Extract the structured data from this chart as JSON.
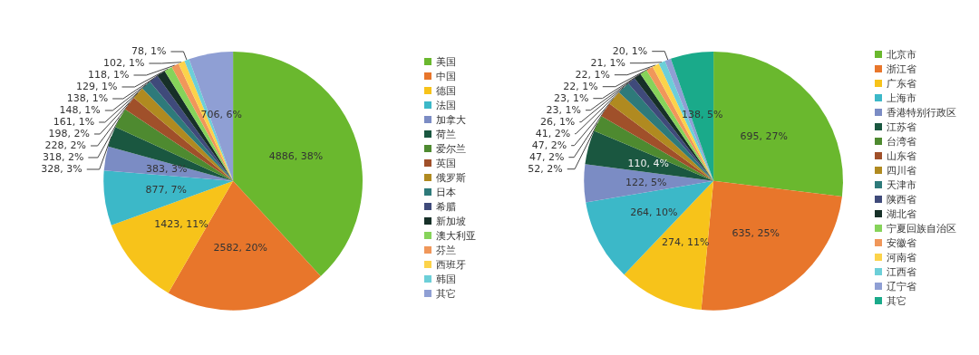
{
  "chart_data": [
    {
      "type": "pie",
      "categories": [
        "美国",
        "中国",
        "德国",
        "法国",
        "加拿大",
        "荷兰",
        "爱尔兰",
        "英国",
        "俄罗斯",
        "日本",
        "希腊",
        "新加坡",
        "澳大利亚",
        "芬兰",
        "西班牙",
        "韩国",
        "其它"
      ],
      "values": [
        4886,
        2582,
        1423,
        877,
        383,
        328,
        318,
        228,
        198,
        161,
        148,
        138,
        129,
        118,
        102,
        78,
        706
      ],
      "value_labels": [
        "4886, 38%",
        "2582, 20%",
        "1423, 11%",
        "877, 7%",
        "383, 3%",
        "328, 3%",
        "318, 2%",
        "228, 2%",
        "198, 2%",
        "161, 1%",
        "148, 1%",
        "138, 1%",
        "129, 1%",
        "118, 1%",
        "102, 1%",
        "78, 1%",
        "706, 6%"
      ],
      "colors": [
        "#6ab82e",
        "#e8762b",
        "#f7c31a",
        "#3cb8c8",
        "#7b8cc4",
        "#1a5740",
        "#4e8a30",
        "#a0502a",
        "#b08a20",
        "#2e7a7a",
        "#3f4a7a",
        "#173028",
        "#86d35a",
        "#f0975a",
        "#fcd34a",
        "#6ccfd8",
        "#8f9fd4"
      ],
      "legend": "right"
    },
    {
      "type": "pie",
      "categories": [
        "北京市",
        "浙江省",
        "广东省",
        "上海市",
        "香港特别行政区",
        "江苏省",
        "台湾省",
        "山东省",
        "四川省",
        "天津市",
        "陕西省",
        "湖北省",
        "宁夏回族自治区",
        "安徽省",
        "河南省",
        "江西省",
        "辽宁省",
        "其它"
      ],
      "values": [
        695,
        635,
        274,
        264,
        122,
        110,
        52,
        47,
        47,
        41,
        26,
        23,
        23,
        22,
        22,
        21,
        20,
        138
      ],
      "value_labels": [
        "695, 27%",
        "635, 25%",
        "274, 11%",
        "264, 10%",
        "122, 5%",
        "110, 4%",
        "52, 2%",
        "47, 2%",
        "47, 2%",
        "41, 2%",
        "26, 1%",
        "23, 1%",
        "23, 1%",
        "22, 1%",
        "22, 1%",
        "21, 1%",
        "20, 1%",
        "138, 5%"
      ],
      "colors": [
        "#6ab82e",
        "#e8762b",
        "#f7c31a",
        "#3cb8c8",
        "#7b8cc4",
        "#1a5740",
        "#4e8a30",
        "#a0502a",
        "#b08a20",
        "#2e7a7a",
        "#3f4a7a",
        "#173028",
        "#86d35a",
        "#f0975a",
        "#fcd34a",
        "#6ccfd8",
        "#8f9fd4",
        "#1aaa8a"
      ],
      "legend": "right"
    }
  ]
}
